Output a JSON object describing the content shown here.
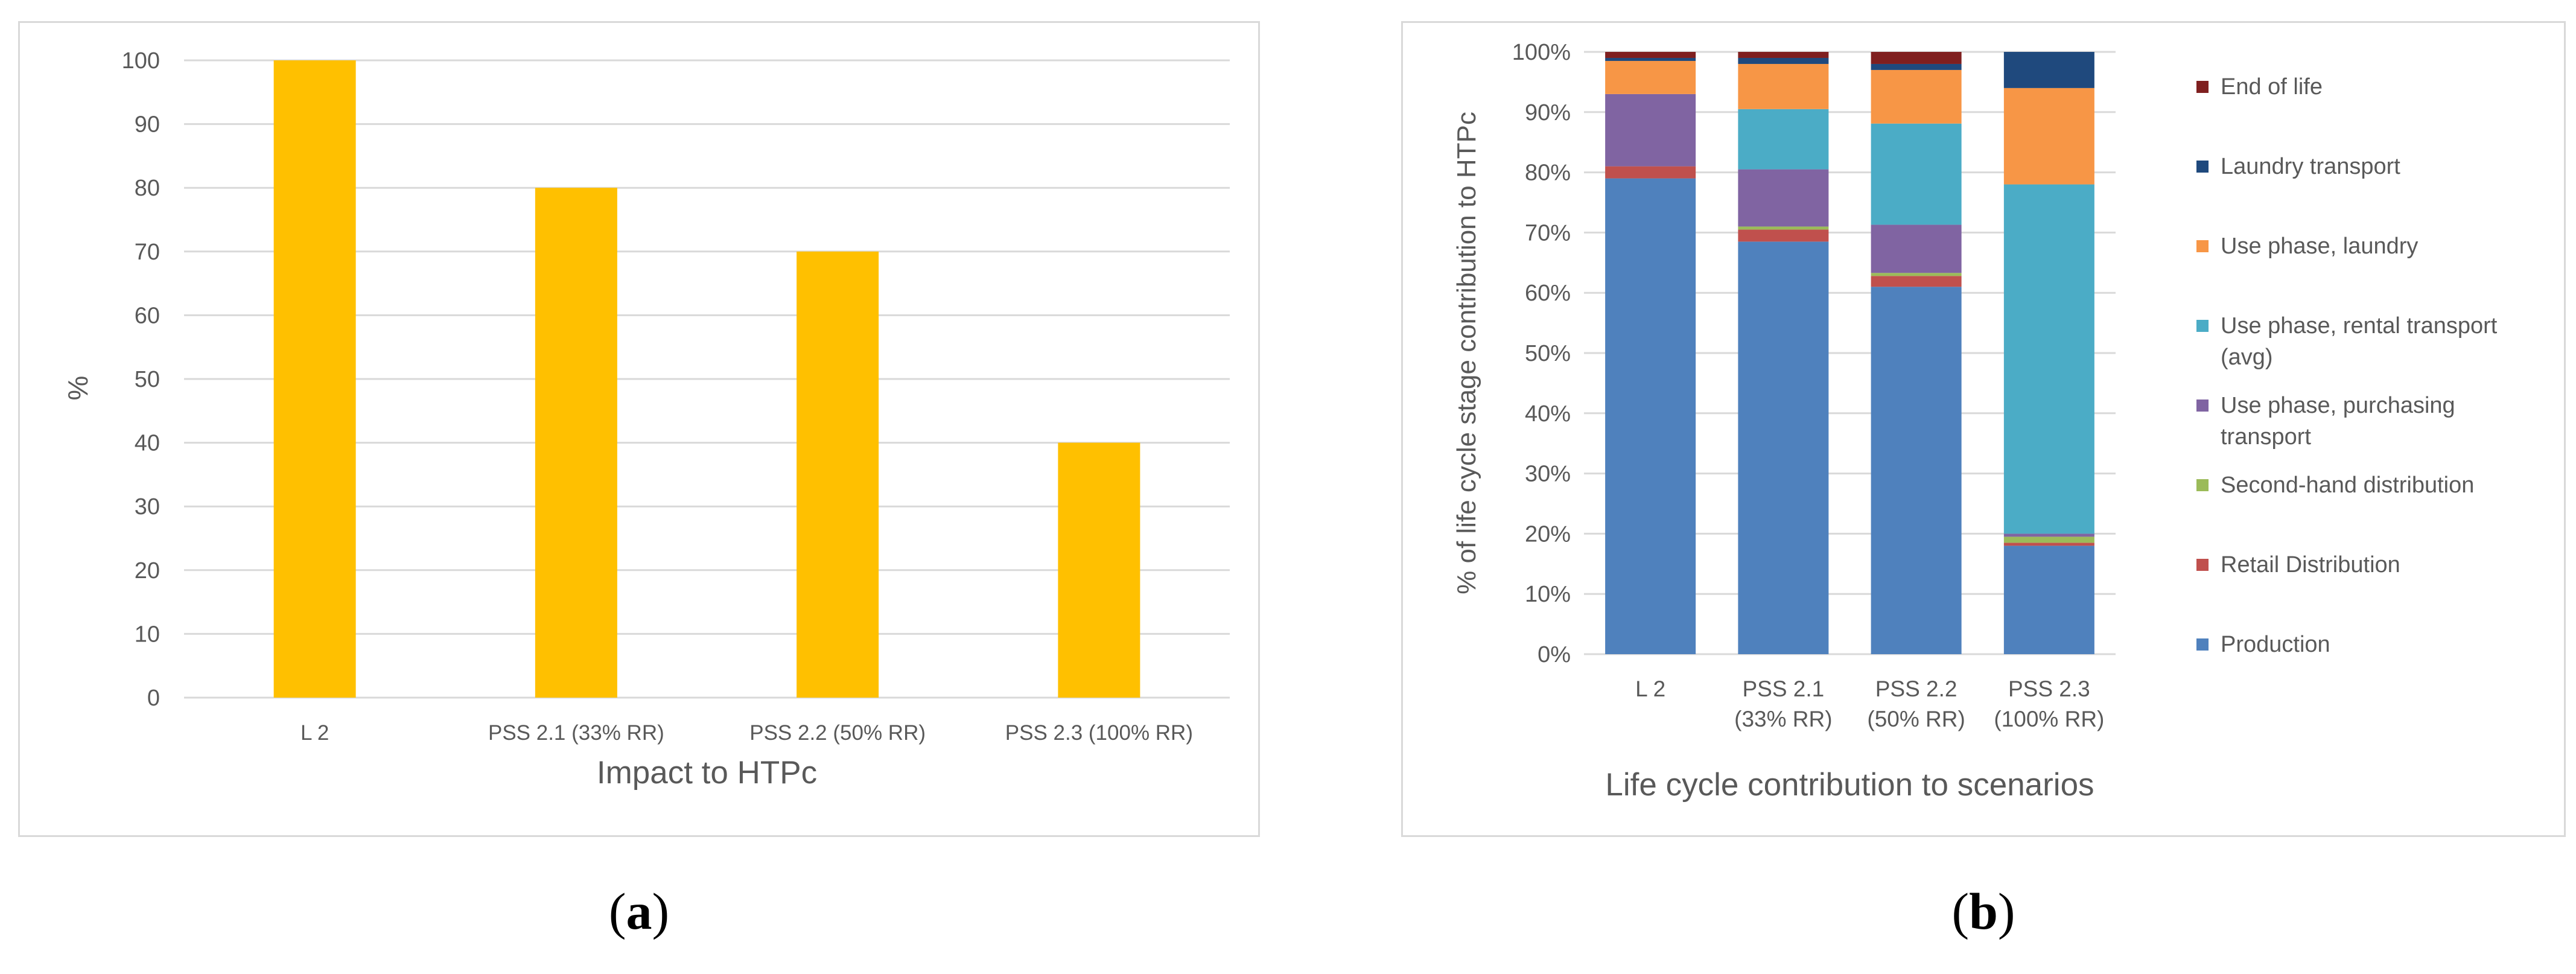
{
  "chart_data": [
    {
      "type": "bar",
      "xlabel": "Impact to HTPc",
      "ylabel": "%",
      "categories": [
        "L 2",
        "PSS 2.1 (33% RR)",
        "PSS 2.2 (50% RR)",
        "PSS 2.3 (100% RR)"
      ],
      "values": [
        100,
        80,
        70,
        40
      ],
      "ylim": [
        0,
        100
      ],
      "yticks": [
        "0",
        "10",
        "20",
        "30",
        "40",
        "50",
        "60",
        "70",
        "80",
        "90",
        "100"
      ],
      "grid": true,
      "colors": {
        "bar": "#FFC000"
      }
    },
    {
      "type": "bar",
      "stacked": true,
      "xlabel": "Life cycle contribution to scenarios",
      "ylabel": "% of life cycle stage contribution to HTPc",
      "categories": [
        [
          "L 2"
        ],
        [
          "PSS 2.1",
          "(33% RR)"
        ],
        [
          "PSS 2.2",
          "(50% RR)"
        ],
        [
          "PSS 2.3",
          "(100% RR)"
        ]
      ],
      "ylim": [
        0,
        100
      ],
      "yticks": [
        "0%",
        "10%",
        "20%",
        "30%",
        "40%",
        "50%",
        "60%",
        "70%",
        "80%",
        "90%",
        "100%"
      ],
      "grid": true,
      "legend_position": "right",
      "series": [
        {
          "name": "Production",
          "color": "#4F81BD",
          "values": [
            79,
            68.5,
            61,
            18
          ]
        },
        {
          "name": "Retail Distribution",
          "color": "#C0504D",
          "values": [
            2,
            2,
            1.8,
            0.5
          ]
        },
        {
          "name": "Second-hand distribution",
          "color": "#9BBB59",
          "values": [
            0,
            0.5,
            0.5,
            1
          ]
        },
        {
          "name": "Use phase, purchasing transport",
          "color": "#8064A2",
          "values": [
            12,
            9.5,
            8,
            0.5
          ]
        },
        {
          "name": "Use phase, rental transport (avg)",
          "color": "#4BACC6",
          "values": [
            0,
            10,
            16.8,
            58
          ]
        },
        {
          "name": "Use phase, laundry",
          "color": "#F79646",
          "values": [
            5.5,
            7.5,
            8.9,
            16
          ]
        },
        {
          "name": "Laundry transport",
          "color": "#1F497D",
          "values": [
            0.5,
            1,
            1,
            6
          ]
        },
        {
          "name": "End of life",
          "color": "#7F1F1F",
          "values": [
            1,
            1,
            2,
            0
          ]
        }
      ],
      "legend": [
        {
          "lines": [
            "End of life"
          ],
          "color": "#7F1F1F"
        },
        {
          "lines": [
            "Laundry transport"
          ],
          "color": "#1F497D"
        },
        {
          "lines": [
            "Use phase, laundry"
          ],
          "color": "#F79646"
        },
        {
          "lines": [
            "Use phase, rental transport",
            "(avg)"
          ],
          "color": "#4BACC6"
        },
        {
          "lines": [
            "Use phase, purchasing",
            "transport"
          ],
          "color": "#8064A2"
        },
        {
          "lines": [
            "Second-hand distribution"
          ],
          "color": "#9BBB59"
        },
        {
          "lines": [
            "Retail Distribution"
          ],
          "color": "#C0504D"
        },
        {
          "lines": [
            "Production"
          ],
          "color": "#4F81BD"
        }
      ]
    }
  ],
  "captions": {
    "a": {
      "open": "(",
      "letter": "a",
      "close": ")"
    },
    "b": {
      "open": "(",
      "letter": "b",
      "close": ")"
    }
  }
}
